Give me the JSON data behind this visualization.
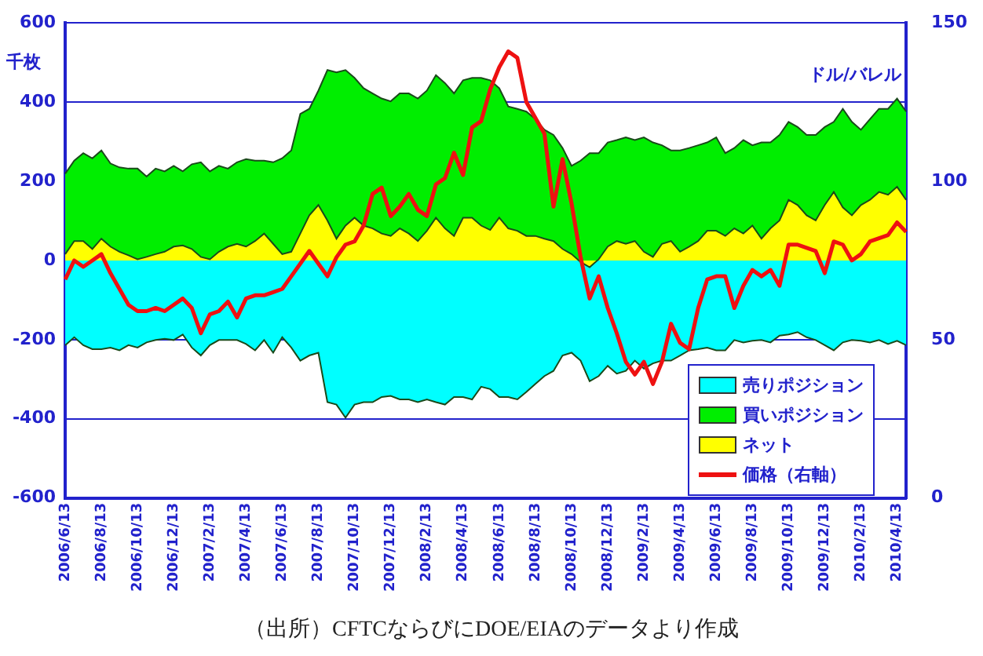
{
  "chart_data": {
    "type": "area",
    "ylabel": "千枚",
    "y2label": "ドル/バレル",
    "annotations": [
      "（出所）CFTCならびにDOE/EIAのデータより作成"
    ],
    "categories": [
      "2006/6/13",
      null,
      null,
      null,
      "2006/8/13",
      null,
      null,
      null,
      "2006/10/13",
      null,
      null,
      null,
      "2006/12/13",
      null,
      null,
      null,
      "2007/2/13",
      null,
      null,
      null,
      "2007/4/13",
      null,
      null,
      null,
      "2007/6/13",
      null,
      null,
      null,
      "2007/8/13",
      null,
      null,
      null,
      "2007/10/13",
      null,
      null,
      null,
      "2007/12/13",
      null,
      null,
      null,
      "2008/2/13",
      null,
      null,
      null,
      "2008/4/13",
      null,
      null,
      null,
      "2008/6/13",
      null,
      null,
      null,
      "2008/8/13",
      null,
      null,
      null,
      "2008/10/13",
      null,
      null,
      null,
      "2008/12/13",
      null,
      null,
      null,
      "2009/2/13",
      null,
      null,
      null,
      "2009/4/13",
      null,
      null,
      null,
      "2009/6/13",
      null,
      null,
      null,
      "2009/8/13",
      null,
      null,
      null,
      "2009/10/13",
      null,
      null,
      null,
      "2009/12/13",
      null,
      null,
      null,
      "2010/2/13",
      null,
      null,
      null,
      "2010/4/13",
      null
    ],
    "series": [
      {
        "name": "売りポジション",
        "color": "#00ffff",
        "values": [
          -214,
          -194,
          -214,
          -224,
          -224,
          -220,
          -227,
          -214,
          -220,
          -207,
          -201,
          -198,
          -201,
          -187,
          -220,
          -240,
          -214,
          -201,
          -201,
          -201,
          -211,
          -227,
          -201,
          -233,
          -194,
          -220,
          -253,
          -240,
          -233,
          -358,
          -364,
          -397,
          -364,
          -358,
          -358,
          -345,
          -342,
          -351,
          -351,
          -358,
          -351,
          -358,
          -364,
          -345,
          -345,
          -351,
          -319,
          -325,
          -345,
          -345,
          -351,
          -332,
          -312,
          -292,
          -279,
          -240,
          -233,
          -253,
          -305,
          -292,
          -266,
          -286,
          -279,
          -253,
          -273,
          -260,
          -253,
          -253,
          -240,
          -227,
          -224,
          -220,
          -227,
          -227,
          -201,
          -207,
          -203,
          -201,
          -207,
          -190,
          -187,
          -181,
          -194,
          -201,
          -214,
          -227,
          -207,
          -201,
          -203,
          -207,
          -201,
          -211,
          -203,
          -214
        ]
      },
      {
        "name": "買いポジション",
        "color": "#00ee00",
        "values": [
          219,
          252,
          271,
          258,
          278,
          245,
          235,
          232,
          232,
          212,
          232,
          225,
          239,
          225,
          243,
          248,
          225,
          239,
          232,
          248,
          256,
          252,
          252,
          248,
          258,
          278,
          370,
          383,
          429,
          481,
          475,
          481,
          461,
          435,
          422,
          409,
          402,
          422,
          422,
          409,
          429,
          468,
          448,
          422,
          455,
          461,
          461,
          455,
          435,
          389,
          383,
          376,
          357,
          330,
          317,
          284,
          239,
          252,
          271,
          271,
          298,
          304,
          311,
          304,
          311,
          298,
          291,
          278,
          278,
          284,
          291,
          298,
          311,
          271,
          284,
          304,
          291,
          298,
          298,
          317,
          350,
          337,
          317,
          317,
          337,
          350,
          383,
          350,
          330,
          357,
          383,
          383,
          409,
          376
        ]
      },
      {
        "name": "ネット",
        "color": "#ffff00",
        "values": [
          16,
          49,
          49,
          29,
          55,
          35,
          22,
          13,
          3,
          9,
          16,
          22,
          35,
          38,
          29,
          9,
          3,
          22,
          35,
          42,
          35,
          49,
          68,
          42,
          16,
          22,
          68,
          114,
          140,
          101,
          55,
          88,
          108,
          88,
          81,
          68,
          62,
          81,
          68,
          49,
          75,
          108,
          81,
          62,
          108,
          108,
          88,
          77,
          108,
          81,
          75,
          62,
          62,
          55,
          49,
          29,
          16,
          -4,
          -17,
          3,
          35,
          49,
          42,
          49,
          22,
          9,
          42,
          49,
          22,
          35,
          49,
          75,
          75,
          62,
          81,
          68,
          88,
          55,
          81,
          101,
          153,
          140,
          114,
          101,
          140,
          173,
          134,
          114,
          140,
          153,
          173,
          166,
          186,
          153
        ]
      },
      {
        "name": "価格（右軸）",
        "type": "line",
        "axis": "y2",
        "color": "#ee1111",
        "values": [
          69,
          75,
          73,
          75,
          77,
          71,
          66,
          61,
          59,
          59,
          60,
          59,
          61,
          63,
          60,
          52,
          58,
          59,
          62,
          57,
          63,
          64,
          64,
          65,
          66,
          70,
          74,
          78,
          74,
          70,
          76,
          80,
          81,
          86,
          96,
          98,
          89,
          92,
          96,
          91,
          89,
          99,
          101,
          109,
          102,
          117,
          119,
          129,
          136,
          141,
          139,
          125,
          120,
          115,
          92,
          107,
          93,
          76,
          63,
          70,
          60,
          52,
          43,
          39,
          43,
          36,
          43,
          55,
          49,
          47,
          60,
          69,
          70,
          70,
          60,
          67,
          72,
          70,
          72,
          67,
          80,
          80,
          79,
          78,
          71,
          81,
          80,
          75,
          77,
          81,
          82,
          83,
          87,
          84
        ]
      }
    ],
    "ylim": [
      -600,
      600
    ],
    "yticks": [
      -600,
      -400,
      -200,
      0,
      200,
      400,
      600
    ],
    "y2lim": [
      0,
      150
    ],
    "y2ticks": [
      0,
      50,
      100,
      150
    ],
    "grid": "y",
    "legend": "bottom right"
  }
}
